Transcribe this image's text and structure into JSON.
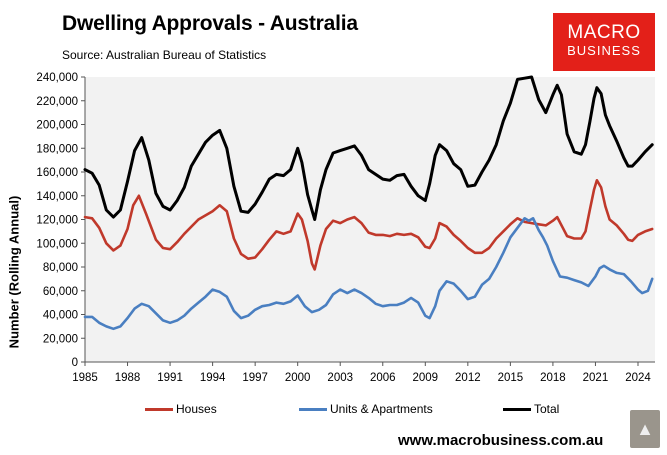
{
  "header": {
    "title": "Dwelling Approvals - Australia",
    "source": "Source: Australian Bureau of Statistics"
  },
  "logo": {
    "line1": "MACRO",
    "line2": "BUSINESS"
  },
  "footer": {
    "url": "www.macrobusiness.com.au",
    "mascot_icon": "wolf-icon"
  },
  "colors": {
    "houses": "#c0392b",
    "units": "#4a7fc1",
    "total": "#000000",
    "logo_bg": "#e32019"
  },
  "chart_data": {
    "type": "line",
    "title": "Dwelling Approvals - Australia",
    "xlabel": "",
    "ylabel": "Number (Rolling Annual)",
    "xlim": [
      1985,
      2025.2
    ],
    "ylim": [
      0,
      240000
    ],
    "xticks": [
      1985,
      1988,
      1991,
      1994,
      1997,
      2000,
      2003,
      2006,
      2009,
      2012,
      2015,
      2018,
      2021,
      2024
    ],
    "xtick_labels": [
      "1985",
      "1988",
      "1991",
      "1994",
      "1997",
      "2000",
      "2003",
      "2006",
      "2009",
      "2012",
      "2015",
      "2018",
      "2021",
      "2024"
    ],
    "yticks": [
      0,
      20000,
      40000,
      60000,
      80000,
      100000,
      120000,
      140000,
      160000,
      180000,
      200000,
      220000,
      240000
    ],
    "ytick_labels": [
      "0",
      "20,000",
      "40,000",
      "60,000",
      "80,000",
      "100,000",
      "120,000",
      "140,000",
      "160,000",
      "180,000",
      "200,000",
      "220,000",
      "240,000"
    ],
    "grid": false,
    "legend_position": "bottom",
    "series": [
      {
        "name": "Houses",
        "x": [
          1985,
          1985.5,
          1986,
          1986.5,
          1987,
          1987.5,
          1988,
          1988.4,
          1988.8,
          1989.3,
          1990,
          1990.5,
          1991,
          1991.5,
          1992,
          1993,
          1994,
          1994.5,
          1995,
          1995.5,
          1996,
          1996.5,
          1997,
          1997.5,
          1998,
          1998.5,
          1999,
          1999.5,
          2000,
          2000.3,
          2000.7,
          2001,
          2001.2,
          2001.6,
          2002,
          2002.5,
          2003,
          2003.5,
          2004,
          2004.5,
          2005,
          2005.5,
          2006,
          2006.5,
          2007,
          2007.5,
          2008,
          2008.5,
          2009,
          2009.3,
          2009.7,
          2010,
          2010.5,
          2011,
          2011.5,
          2012,
          2012.5,
          2013,
          2013.5,
          2014,
          2014.5,
          2015,
          2015.5,
          2016,
          2016.5,
          2017,
          2017.5,
          2018,
          2018.3,
          2018.7,
          2019,
          2019.5,
          2020,
          2020.3,
          2020.6,
          2020.9,
          2021.1,
          2021.4,
          2021.7,
          2022,
          2022.5,
          2023,
          2023.3,
          2023.6,
          2024,
          2024.5,
          2025
        ],
        "values": [
          122000,
          121000,
          113000,
          100000,
          94000,
          98000,
          112000,
          132000,
          140000,
          125000,
          103000,
          96000,
          95000,
          101000,
          108000,
          120000,
          127000,
          132000,
          127000,
          104000,
          91000,
          87000,
          88000,
          95000,
          103000,
          110000,
          108000,
          110000,
          125000,
          120000,
          102000,
          83000,
          78000,
          98000,
          112000,
          119000,
          117000,
          120000,
          122000,
          117000,
          109000,
          107000,
          107000,
          106000,
          108000,
          107000,
          108000,
          105000,
          97000,
          96000,
          104000,
          117000,
          114000,
          107000,
          102000,
          96000,
          92000,
          92000,
          96000,
          104000,
          110000,
          116000,
          121000,
          118000,
          117000,
          116000,
          115000,
          119000,
          122000,
          113000,
          106000,
          104000,
          104000,
          110000,
          128000,
          145000,
          153000,
          147000,
          131000,
          120000,
          115000,
          108000,
          103000,
          102000,
          107000,
          110000,
          112000
        ]
      },
      {
        "name": "Units & Apartments",
        "x": [
          1985,
          1985.5,
          1986,
          1986.5,
          1987,
          1987.5,
          1988,
          1988.5,
          1989,
          1989.5,
          1990,
          1990.5,
          1991,
          1991.5,
          1992,
          1992.5,
          1993,
          1993.5,
          1994,
          1994.5,
          1995,
          1995.5,
          1996,
          1996.5,
          1997,
          1997.5,
          1998,
          1998.5,
          1999,
          1999.5,
          2000,
          2000.5,
          2001,
          2001.5,
          2002,
          2002.5,
          2003,
          2003.5,
          2004,
          2004.5,
          2005,
          2005.5,
          2006,
          2006.5,
          2007,
          2007.5,
          2008,
          2008.5,
          2009,
          2009.3,
          2009.7,
          2010,
          2010.5,
          2011,
          2011.5,
          2012,
          2012.5,
          2013,
          2013.5,
          2014,
          2014.5,
          2015,
          2015.5,
          2016,
          2016.3,
          2016.6,
          2017,
          2017.3,
          2017.6,
          2018,
          2018.5,
          2019,
          2019.5,
          2020,
          2020.5,
          2021,
          2021.3,
          2021.6,
          2022,
          2022.5,
          2023,
          2023.5,
          2024,
          2024.3,
          2024.7,
          2025
        ],
        "values": [
          38000,
          38000,
          33000,
          30000,
          28000,
          30000,
          37000,
          45000,
          49000,
          47000,
          41000,
          35000,
          33000,
          35000,
          39000,
          45000,
          50000,
          55000,
          61000,
          59000,
          55000,
          43000,
          37000,
          39000,
          44000,
          47000,
          48000,
          50000,
          49000,
          51000,
          56000,
          47000,
          42000,
          44000,
          48000,
          57000,
          61000,
          58000,
          61000,
          58000,
          54000,
          49000,
          47000,
          48000,
          48000,
          50000,
          54000,
          50000,
          39000,
          37000,
          47000,
          60000,
          68000,
          66000,
          60000,
          53000,
          55000,
          65000,
          70000,
          80000,
          92000,
          105000,
          113000,
          121000,
          119000,
          121000,
          111000,
          105000,
          98000,
          85000,
          72000,
          71000,
          69000,
          67000,
          64000,
          72000,
          79000,
          81000,
          78000,
          75000,
          74000,
          68000,
          61000,
          58000,
          60000,
          70000
        ]
      },
      {
        "name": "Total",
        "x": [
          1985,
          1985.5,
          1986,
          1986.5,
          1987,
          1987.5,
          1988,
          1988.5,
          1989,
          1989.5,
          1990,
          1990.5,
          1991,
          1991.5,
          1992,
          1992.5,
          1993,
          1993.5,
          1994,
          1994.5,
          1995,
          1995.5,
          1996,
          1996.5,
          1997,
          1997.5,
          1998,
          1998.5,
          1999,
          1999.5,
          2000,
          2000.3,
          2000.7,
          2001,
          2001.2,
          2001.6,
          2002,
          2002.5,
          2003,
          2003.5,
          2004,
          2004.5,
          2005,
          2005.5,
          2006,
          2006.5,
          2007,
          2007.5,
          2008,
          2008.5,
          2009,
          2009.3,
          2009.7,
          2010,
          2010.5,
          2011,
          2011.5,
          2012,
          2012.5,
          2013,
          2013.5,
          2014,
          2014.5,
          2015,
          2015.5,
          2016,
          2016.5,
          2017,
          2017.5,
          2018,
          2018.3,
          2018.6,
          2019,
          2019.5,
          2020,
          2020.3,
          2020.6,
          2020.9,
          2021.1,
          2021.4,
          2021.7,
          2022,
          2022.5,
          2023,
          2023.3,
          2023.6,
          2024,
          2024.5,
          2025
        ],
        "values": [
          162000,
          159000,
          149000,
          128000,
          122000,
          128000,
          152000,
          178000,
          189000,
          170000,
          142000,
          131000,
          128000,
          136000,
          147000,
          165000,
          175000,
          185000,
          191000,
          195000,
          180000,
          148000,
          127000,
          126000,
          133000,
          143000,
          154000,
          158000,
          157000,
          162000,
          180000,
          168000,
          141000,
          128000,
          120000,
          145000,
          162000,
          176000,
          178000,
          180000,
          182000,
          174000,
          162000,
          158000,
          154000,
          153000,
          157000,
          158000,
          148000,
          140000,
          136000,
          150000,
          174000,
          183000,
          178000,
          167000,
          162000,
          148000,
          149000,
          160000,
          170000,
          183000,
          203000,
          218000,
          238000,
          239000,
          240000,
          221000,
          210000,
          225000,
          233000,
          225000,
          192000,
          177000,
          175000,
          183000,
          202000,
          222000,
          231000,
          226000,
          208000,
          199000,
          186000,
          172000,
          165000,
          165000,
          170000,
          177000,
          183000
        ]
      }
    ]
  }
}
